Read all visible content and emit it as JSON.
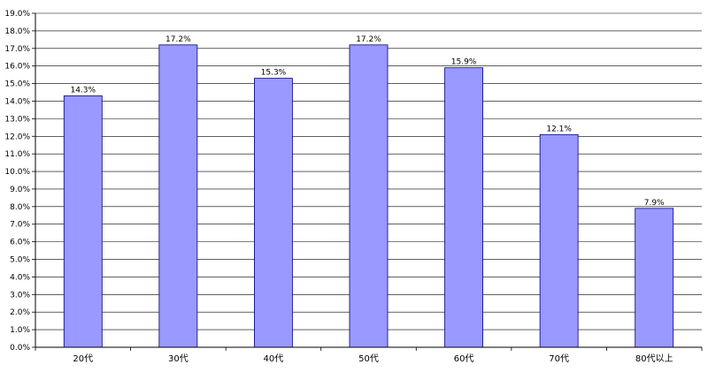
{
  "chart_data": {
    "type": "bar",
    "categories": [
      "20代",
      "30代",
      "40代",
      "50代",
      "60代",
      "70代",
      "80代以上"
    ],
    "values": [
      14.3,
      17.2,
      15.3,
      17.2,
      15.9,
      12.1,
      7.9
    ],
    "data_labels": [
      "14.3%",
      "17.2%",
      "15.3%",
      "17.2%",
      "15.9%",
      "12.1%",
      "7.9%"
    ],
    "y_ticks": [
      "0.0%",
      "1.0%",
      "2.0%",
      "3.0%",
      "4.0%",
      "5.0%",
      "6.0%",
      "7.0%",
      "8.0%",
      "9.0%",
      "10.0%",
      "11.0%",
      "12.0%",
      "13.0%",
      "14.0%",
      "15.0%",
      "16.0%",
      "17.0%",
      "18.0%",
      "19.0%"
    ],
    "ylim": [
      0,
      19
    ],
    "title": "",
    "xlabel": "",
    "ylabel": "",
    "grid": true,
    "legend": "none",
    "bar_color": "#9999ff",
    "bar_border_color": "#000080"
  }
}
